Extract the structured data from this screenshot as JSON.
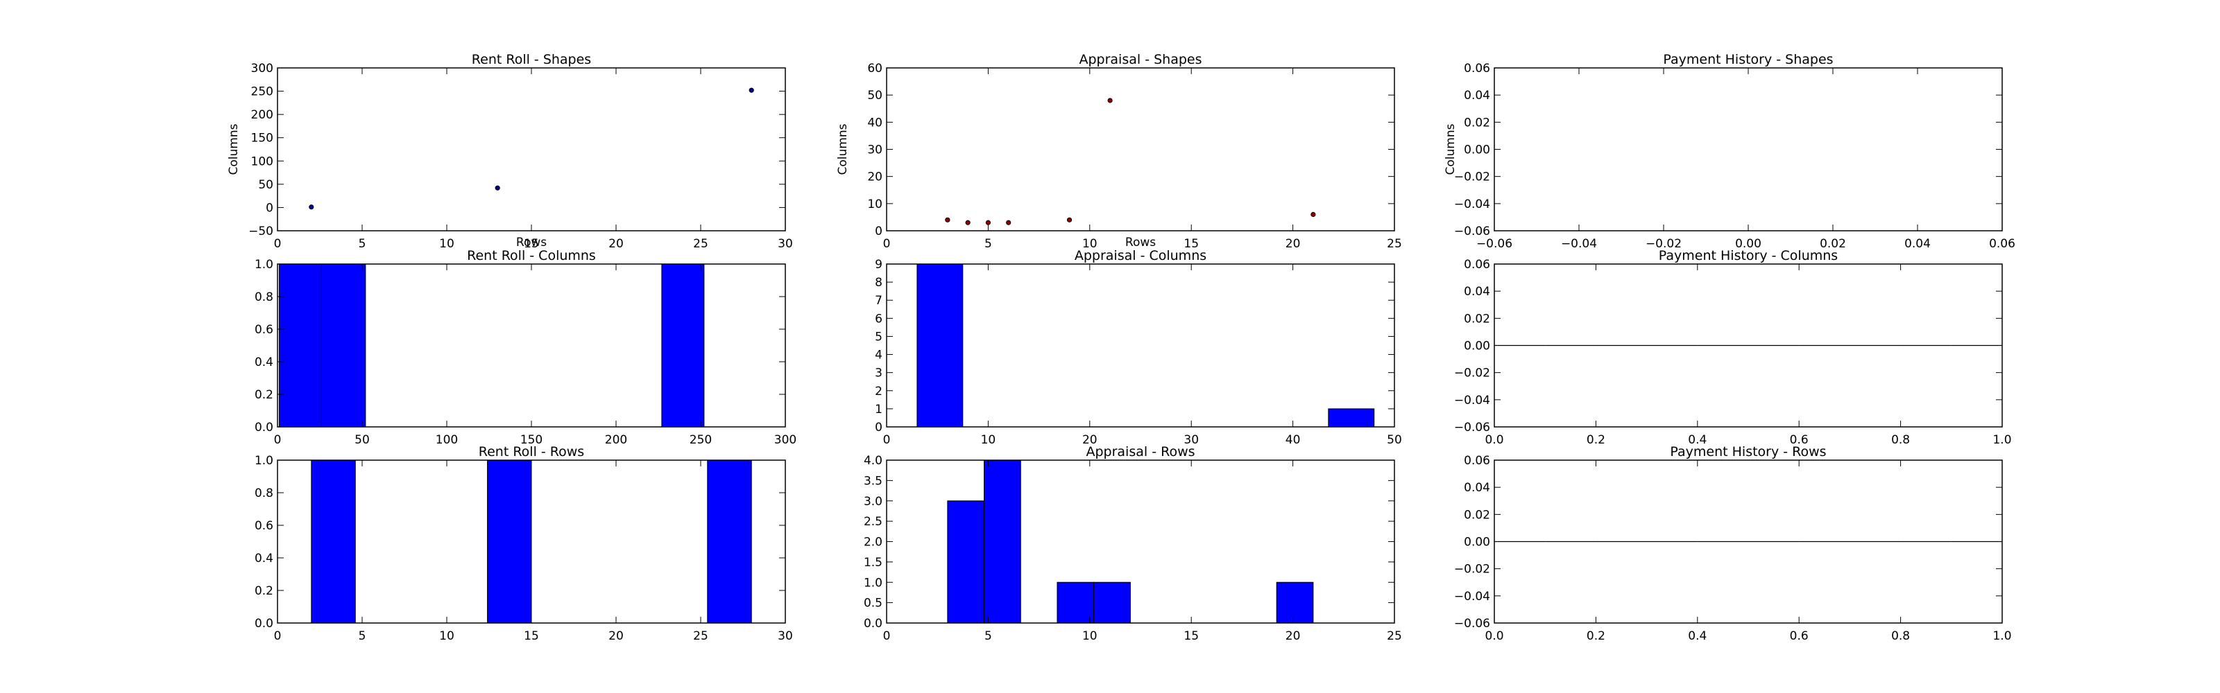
{
  "style": {
    "bar_color": "#0000ff",
    "scatter_color_rent": "#00008b",
    "scatter_color_appraisal": "#8b0000",
    "axis_color": "#000000"
  },
  "chart_data": [
    {
      "id": "rent-shapes",
      "type": "scatter",
      "title": "Rent Roll - Shapes",
      "xlabel": "Rows",
      "ylabel": "Columns",
      "xlim": [
        0,
        30
      ],
      "ylim": [
        -50,
        300
      ],
      "xticks": [
        0,
        5,
        10,
        15,
        20,
        25,
        30
      ],
      "yticks": [
        -50,
        0,
        50,
        100,
        150,
        200,
        250,
        300
      ],
      "tick_decimals": 0,
      "color": "#00008b",
      "points": [
        [
          2,
          1
        ],
        [
          13,
          42
        ],
        [
          28,
          252
        ]
      ]
    },
    {
      "id": "appraisal-shapes",
      "type": "scatter",
      "title": "Appraisal - Shapes",
      "xlabel": "Rows",
      "ylabel": "Columns",
      "xlim": [
        0,
        25
      ],
      "ylim": [
        0,
        60
      ],
      "xticks": [
        0,
        5,
        10,
        15,
        20,
        25
      ],
      "yticks": [
        0,
        10,
        20,
        30,
        40,
        50,
        60
      ],
      "tick_decimals": 0,
      "color": "#8b0000",
      "points": [
        [
          3,
          4
        ],
        [
          4,
          3
        ],
        [
          5,
          3
        ],
        [
          6,
          3
        ],
        [
          9,
          4
        ],
        [
          11,
          48
        ],
        [
          21,
          6
        ]
      ]
    },
    {
      "id": "payment-shapes",
      "type": "scatter",
      "title": "Payment History - Shapes",
      "xlabel": "",
      "ylabel": "Columns",
      "xlim": [
        -0.06,
        0.06
      ],
      "ylim": [
        -0.06,
        0.06
      ],
      "xticks": [
        -0.06,
        -0.04,
        -0.02,
        0.0,
        0.02,
        0.04,
        0.06
      ],
      "yticks": [
        -0.06,
        -0.04,
        -0.02,
        0.0,
        0.02,
        0.04,
        0.06
      ],
      "tick_decimals": 2,
      "color": "#00008b",
      "points": []
    },
    {
      "id": "rent-columns",
      "type": "bar",
      "title": "Rent Roll - Columns",
      "xlim": [
        0,
        300
      ],
      "ylim": [
        0,
        1.0
      ],
      "xticks": [
        0,
        50,
        100,
        150,
        200,
        250,
        300
      ],
      "yticks": [
        0.0,
        0.2,
        0.4,
        0.6,
        0.8,
        1.0
      ],
      "xtick_decimals": 0,
      "ytick_decimals": 1,
      "bins": [
        [
          1,
          26,
          1
        ],
        [
          26,
          52,
          1
        ],
        [
          227,
          252,
          1
        ]
      ]
    },
    {
      "id": "appraisal-columns",
      "type": "bar",
      "title": "Appraisal - Columns",
      "xlim": [
        0,
        50
      ],
      "ylim": [
        0,
        9
      ],
      "xticks": [
        0,
        10,
        20,
        30,
        40,
        50
      ],
      "yticks": [
        0,
        1,
        2,
        3,
        4,
        5,
        6,
        7,
        8,
        9
      ],
      "xtick_decimals": 0,
      "ytick_decimals": 0,
      "bins": [
        [
          3,
          7.5,
          9
        ],
        [
          43.5,
          48,
          1
        ]
      ]
    },
    {
      "id": "payment-columns",
      "type": "bar",
      "title": "Payment History - Columns",
      "xlim": [
        0,
        1.0
      ],
      "ylim": [
        -0.06,
        0.06
      ],
      "xticks": [
        0.0,
        0.2,
        0.4,
        0.6,
        0.8,
        1.0
      ],
      "yticks": [
        -0.06,
        -0.04,
        -0.02,
        0.0,
        0.02,
        0.04,
        0.06
      ],
      "xtick_decimals": 1,
      "ytick_decimals": 2,
      "bins": [
        [
          0.0,
          0.1,
          0
        ],
        [
          0.1,
          0.2,
          0
        ],
        [
          0.2,
          0.3,
          0
        ],
        [
          0.3,
          0.4,
          0
        ],
        [
          0.4,
          0.5,
          0
        ],
        [
          0.5,
          0.6,
          0
        ],
        [
          0.6,
          0.7,
          0
        ],
        [
          0.7,
          0.8,
          0
        ],
        [
          0.8,
          0.9,
          0
        ],
        [
          0.9,
          1.0,
          0
        ]
      ]
    },
    {
      "id": "rent-rows",
      "type": "bar",
      "title": "Rent Roll - Rows",
      "xlim": [
        0,
        30
      ],
      "ylim": [
        0,
        1.0
      ],
      "xticks": [
        0,
        5,
        10,
        15,
        20,
        25,
        30
      ],
      "yticks": [
        0.0,
        0.2,
        0.4,
        0.6,
        0.8,
        1.0
      ],
      "xtick_decimals": 0,
      "ytick_decimals": 1,
      "bins": [
        [
          2,
          4.6,
          1
        ],
        [
          12.4,
          15,
          1
        ],
        [
          25.4,
          28,
          1
        ]
      ]
    },
    {
      "id": "appraisal-rows",
      "type": "bar",
      "title": "Appraisal - Rows",
      "xlim": [
        0,
        25
      ],
      "ylim": [
        0,
        4.0
      ],
      "xticks": [
        0,
        5,
        10,
        15,
        20,
        25
      ],
      "yticks": [
        0.0,
        0.5,
        1.0,
        1.5,
        2.0,
        2.5,
        3.0,
        3.5,
        4.0
      ],
      "xtick_decimals": 0,
      "ytick_decimals": 1,
      "bins": [
        [
          3,
          4.8,
          3
        ],
        [
          4.8,
          6.6,
          4
        ],
        [
          8.4,
          10.2,
          1
        ],
        [
          10.2,
          12,
          1
        ],
        [
          19.2,
          21,
          1
        ]
      ]
    },
    {
      "id": "payment-rows",
      "type": "bar",
      "title": "Payment History - Rows",
      "xlim": [
        0,
        1.0
      ],
      "ylim": [
        -0.06,
        0.06
      ],
      "xticks": [
        0.0,
        0.2,
        0.4,
        0.6,
        0.8,
        1.0
      ],
      "yticks": [
        -0.06,
        -0.04,
        -0.02,
        0.0,
        0.02,
        0.04,
        0.06
      ],
      "xtick_decimals": 1,
      "ytick_decimals": 2,
      "bins": [
        [
          0.0,
          0.1,
          0
        ],
        [
          0.1,
          0.2,
          0
        ],
        [
          0.2,
          0.3,
          0
        ],
        [
          0.3,
          0.4,
          0
        ],
        [
          0.4,
          0.5,
          0
        ],
        [
          0.5,
          0.6,
          0
        ],
        [
          0.6,
          0.7,
          0
        ],
        [
          0.7,
          0.8,
          0
        ],
        [
          0.8,
          0.9,
          0
        ],
        [
          0.9,
          1.0,
          0
        ]
      ]
    }
  ]
}
